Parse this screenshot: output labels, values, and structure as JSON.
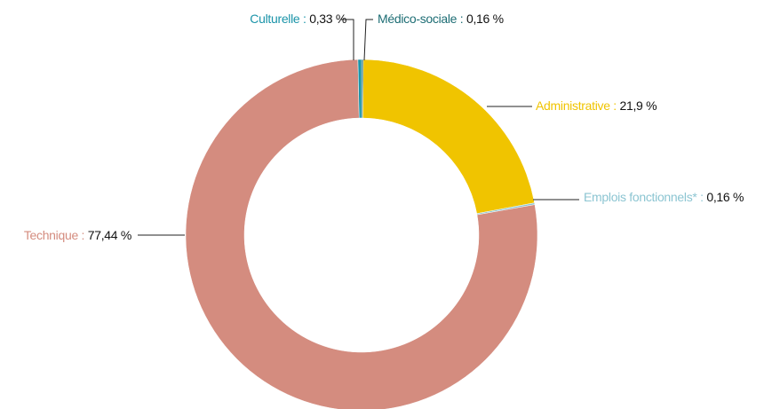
{
  "chart_data": {
    "type": "donut",
    "categories": [
      "Médico-sociale :",
      "Administrative :",
      "Emplois fonctionnels* :",
      "Technique :",
      "Culturelle :"
    ],
    "values": [
      0.16,
      21.9,
      0.16,
      77.44,
      0.33
    ],
    "value_labels": [
      "0,16 %",
      "21,9 %",
      "0,16 %",
      "77,44 %",
      "0,33 %"
    ],
    "colors": [
      "#1d6d74",
      "#f0c400",
      "#8cc5d2",
      "#d48c7f",
      "#1b94a9"
    ]
  }
}
